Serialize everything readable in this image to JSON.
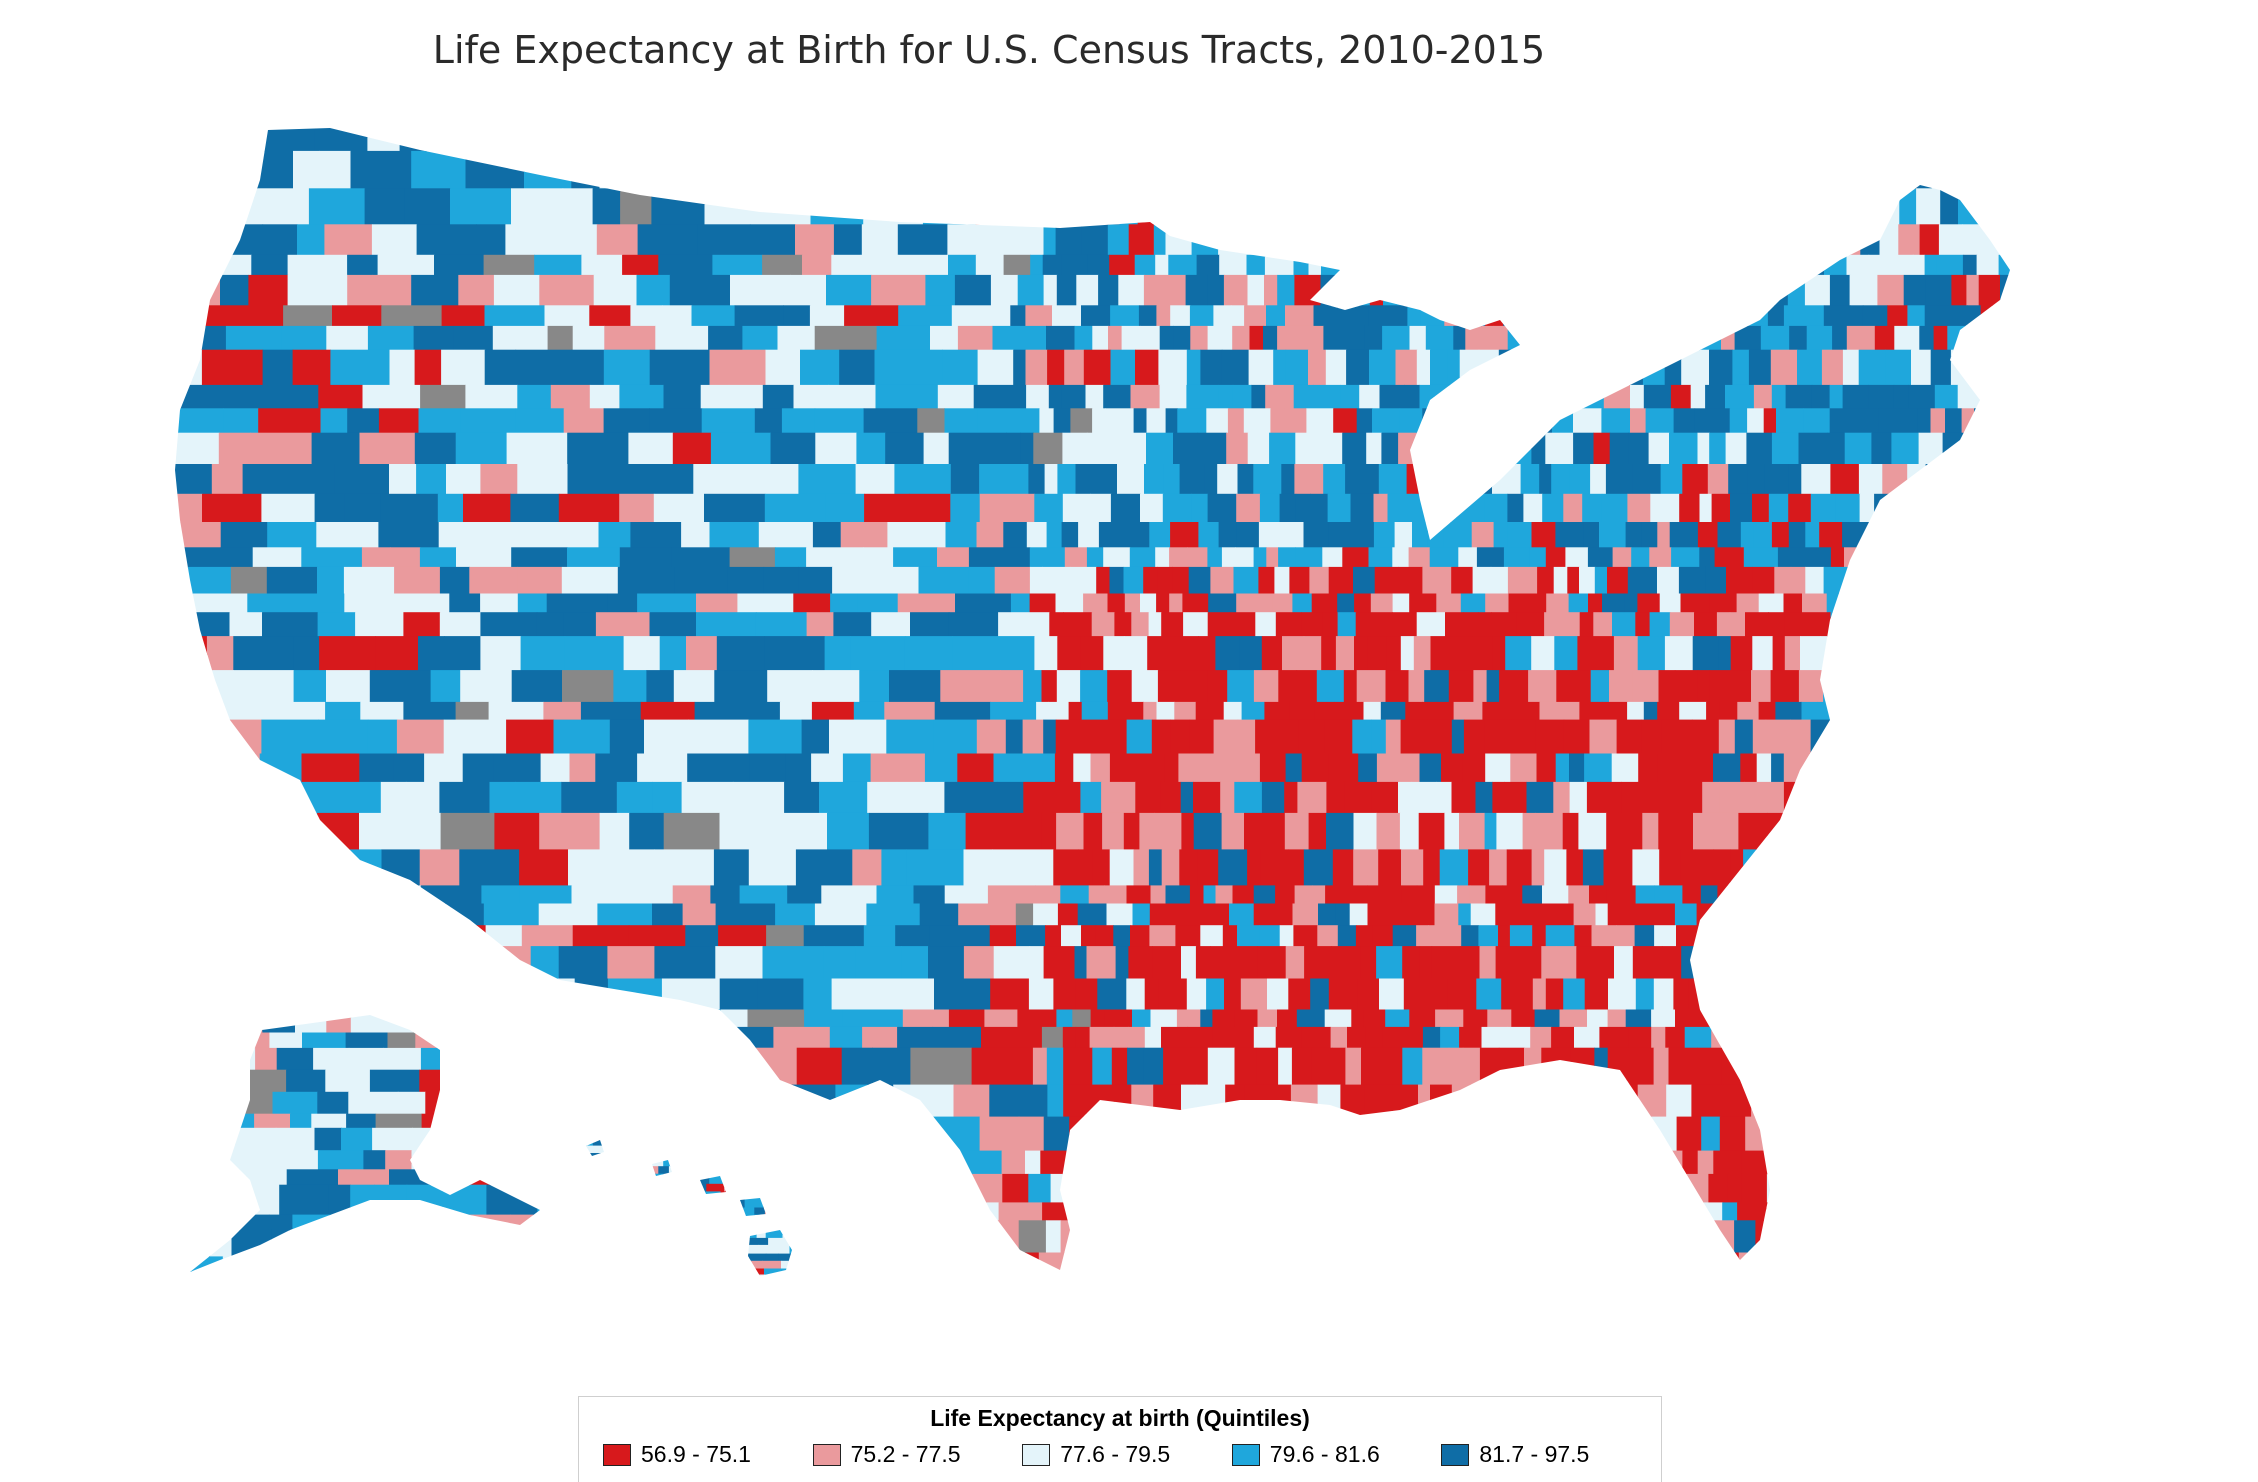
{
  "title": "Life Expectancy at Birth for U.S. Census Tracts, 2010-2015",
  "legend": {
    "title": "Life Expectancy at birth (Quintiles)",
    "items": [
      {
        "label": "56.9 - 75.1",
        "color": "#d7191c"
      },
      {
        "label": "75.2 - 77.5",
        "color": "#ea9a9d"
      },
      {
        "label": "77.6 - 79.5",
        "color": "#e4f4fa"
      },
      {
        "label": "79.6 - 81.6",
        "color": "#1fa7dc"
      },
      {
        "label": "81.7 - 97.5",
        "color": "#0f6da6"
      }
    ],
    "no_data_color": "#888888"
  },
  "map": {
    "regions": [
      {
        "name": "contiguous-us",
        "pattern": "mixed-west",
        "palette": [
          2,
          3,
          4,
          3,
          4,
          1,
          2,
          3
        ]
      },
      {
        "name": "southeast",
        "pattern": "mostly-red",
        "palette": [
          0,
          0,
          1,
          0,
          1,
          2,
          0
        ]
      },
      {
        "name": "northeast-midwest",
        "pattern": "mostly-blue",
        "palette": [
          4,
          3,
          2,
          4,
          3,
          1
        ]
      },
      {
        "name": "alaska",
        "pattern": "mixed",
        "palette": [
          1,
          0,
          2,
          4,
          1
        ]
      },
      {
        "name": "hawaii",
        "pattern": "mixed",
        "palette": [
          3,
          4,
          2
        ]
      }
    ]
  }
}
